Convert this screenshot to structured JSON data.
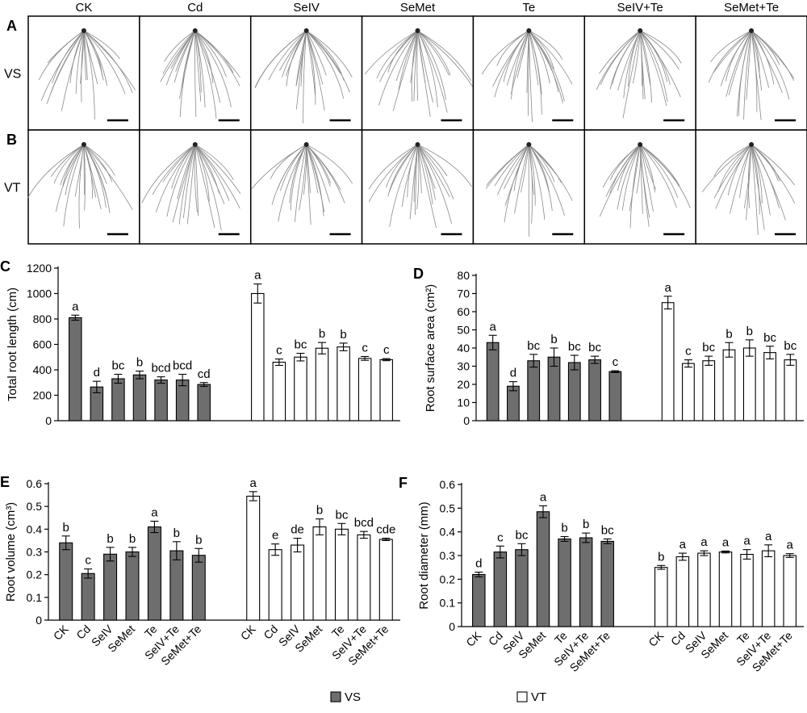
{
  "photo_panels": {
    "labels": [
      "A",
      "B"
    ],
    "columns": [
      "CK",
      "Cd",
      "SeIV",
      "SeMet",
      "Te",
      "SeIV+Te",
      "SeMet+Te"
    ],
    "row_labels": [
      "VS",
      "VT"
    ]
  },
  "legend": {
    "items": [
      {
        "label": "VS",
        "color": "#6e6e6e"
      },
      {
        "label": "VT",
        "color": "#ffffff"
      }
    ]
  },
  "chart_data": [
    {
      "panel": "C",
      "type": "bar",
      "ylabel": "Total root length (cm)",
      "ylim": [
        0,
        1200
      ],
      "yticks": [
        0,
        200,
        400,
        600,
        800,
        1000,
        1200
      ],
      "categories": [
        "CK",
        "Cd",
        "SeIV",
        "SeMet",
        "Te",
        "SeIV+Te",
        "SeMet+Te"
      ],
      "show_xlabels": false,
      "series": [
        {
          "name": "VS",
          "color": "#6e6e6e",
          "values": [
            810,
            265,
            330,
            360,
            320,
            320,
            285
          ],
          "errors": [
            20,
            45,
            35,
            30,
            25,
            45,
            15
          ],
          "letters": [
            "a",
            "d",
            "bc",
            "b",
            "bcd",
            "bcd",
            "cd"
          ]
        },
        {
          "name": "VT",
          "color": "#ffffff",
          "values": [
            1000,
            460,
            500,
            570,
            580,
            490,
            480
          ],
          "errors": [
            75,
            25,
            30,
            45,
            30,
            15,
            8
          ],
          "letters": [
            "a",
            "c",
            "bc",
            "b",
            "b",
            "c",
            "c"
          ]
        }
      ]
    },
    {
      "panel": "D",
      "type": "bar",
      "ylabel": "Root surface area (cm²)",
      "ylim": [
        0,
        80
      ],
      "yticks": [
        0,
        10,
        20,
        30,
        40,
        50,
        60,
        70,
        80
      ],
      "categories": [
        "CK",
        "Cd",
        "SeIV",
        "SeMet",
        "Te",
        "SeIV+Te",
        "SeMet+Te"
      ],
      "show_xlabels": false,
      "series": [
        {
          "name": "VS",
          "color": "#6e6e6e",
          "values": [
            43,
            19,
            33,
            35,
            32,
            33.5,
            27
          ],
          "errors": [
            4,
            2.5,
            3.5,
            5,
            4,
            2,
            0.5
          ],
          "letters": [
            "a",
            "d",
            "bc",
            "b",
            "bc",
            "bc",
            "c"
          ]
        },
        {
          "name": "VT",
          "color": "#ffffff",
          "values": [
            65,
            31.5,
            33,
            39,
            40,
            37.5,
            33.5
          ],
          "errors": [
            3.5,
            2,
            2.5,
            4,
            4.5,
            3.5,
            3
          ],
          "letters": [
            "a",
            "c",
            "bc",
            "b",
            "b",
            "bc",
            "bc"
          ]
        }
      ]
    },
    {
      "panel": "E",
      "type": "bar",
      "ylabel": "Root volume (cm³)",
      "ylim": [
        0,
        0.6
      ],
      "yticks": [
        0,
        0.1,
        0.2,
        0.3,
        0.4,
        0.5,
        0.6
      ],
      "categories": [
        "CK",
        "Cd",
        "SeIV",
        "SeMet",
        "Te",
        "SeIV+Te",
        "SeMet+Te"
      ],
      "show_xlabels": true,
      "series": [
        {
          "name": "VS",
          "color": "#6e6e6e",
          "values": [
            0.34,
            0.205,
            0.29,
            0.3,
            0.41,
            0.305,
            0.285
          ],
          "errors": [
            0.03,
            0.02,
            0.03,
            0.02,
            0.025,
            0.04,
            0.03
          ],
          "letters": [
            "b",
            "c",
            "b",
            "b",
            "a",
            "b",
            "b"
          ]
        },
        {
          "name": "VT",
          "color": "#ffffff",
          "values": [
            0.545,
            0.31,
            0.33,
            0.41,
            0.4,
            0.375,
            0.355
          ],
          "errors": [
            0.02,
            0.025,
            0.03,
            0.035,
            0.025,
            0.015,
            0.005
          ],
          "letters": [
            "a",
            "e",
            "de",
            "b",
            "bc",
            "bcd",
            "cde"
          ]
        }
      ]
    },
    {
      "panel": "F",
      "type": "bar",
      "ylabel": "Root diameter (mm)",
      "ylim": [
        0,
        0.6
      ],
      "yticks": [
        0,
        0.1,
        0.2,
        0.3,
        0.4,
        0.5,
        0.6
      ],
      "categories": [
        "CK",
        "Cd",
        "SeIV",
        "SeMet",
        "Te",
        "SeIV+Te",
        "SeMet+Te"
      ],
      "show_xlabels": true,
      "series": [
        {
          "name": "VS",
          "color": "#6e6e6e",
          "values": [
            0.22,
            0.315,
            0.325,
            0.485,
            0.37,
            0.375,
            0.36
          ],
          "errors": [
            0.01,
            0.025,
            0.025,
            0.025,
            0.01,
            0.02,
            0.01
          ],
          "letters": [
            "d",
            "c",
            "bc",
            "a",
            "b",
            "b",
            "bc"
          ]
        },
        {
          "name": "VT",
          "color": "#ffffff",
          "values": [
            0.25,
            0.295,
            0.31,
            0.315,
            0.305,
            0.32,
            0.3
          ],
          "errors": [
            0.008,
            0.015,
            0.01,
            0.004,
            0.02,
            0.025,
            0.008
          ],
          "letters": [
            "b",
            "a",
            "a",
            "a",
            "a",
            "a",
            "a"
          ]
        }
      ]
    }
  ]
}
